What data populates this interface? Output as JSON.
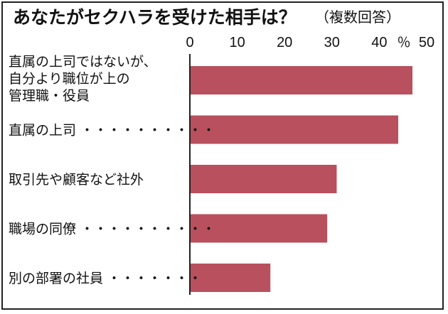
{
  "chart_data": {
    "type": "bar",
    "orientation": "horizontal",
    "title": "あなたがセクハラを受けた相手は？",
    "subtitle": "（複数回答）",
    "unit": "％",
    "categories": [
      [
        "直属の上司ではないが、",
        "自分より職位が上の",
        "管理職・役員"
      ],
      [
        "直属の上司 ・・・・・・・・・・"
      ],
      [
        "取引先や顧客など社外"
      ],
      [
        "職場の同僚 ・・・・・・・・・・"
      ],
      [
        "別の部署の社員 ・・・・・・・"
      ]
    ],
    "values": [
      47,
      44,
      31,
      29,
      17
    ],
    "xlim": [
      0,
      50
    ],
    "xticks": [
      0,
      10,
      20,
      30,
      40,
      50
    ],
    "bar_color": "#b8505e",
    "grid": false
  }
}
